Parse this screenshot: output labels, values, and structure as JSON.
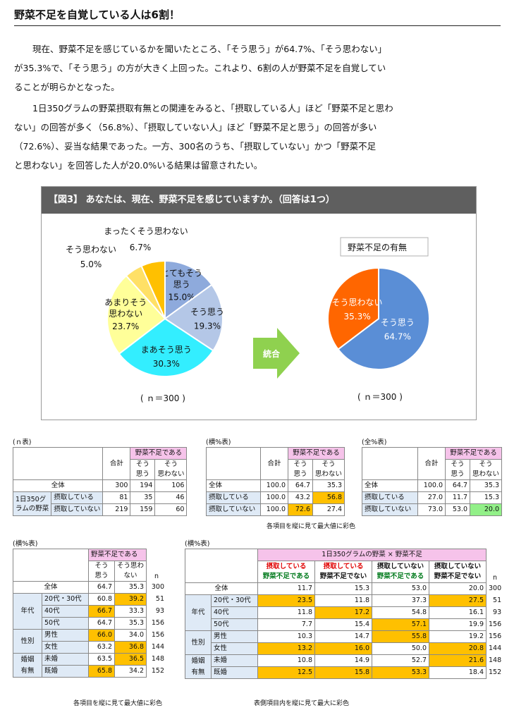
{
  "title": "野菜不足を自覚している人は6割！",
  "para1": [
    "現在、野菜不足を感じているかを聞いたところ、「そう思う」が64.7%、「そう思わない」",
    "が35.3%で、「そう思う」の方が大きく上回った。これより、6割の人が野菜不足を自覚してい",
    "ることが明らかとなった。"
  ],
  "para2": [
    "1日350グラムの野菜摂取有無との関連をみると、「摂取している人」ほど「野菜不足と思わ",
    "ない」の回答が多く（56.8%）、「摂取していない人」ほど「野菜不足と思う」の回答が多い",
    "（72.6%）、妥当な結果であった。一方、300名のうち、「摂取していない」かつ「野菜不足",
    "と思わない」を回答した人が20.0%いる結果は留意されたい。"
  ],
  "figure": {
    "title": "【図3】 あなたは、現在、野菜不足を感じていますか。（回答は1つ）",
    "merge_label": "統合",
    "left_pie": {
      "n_label": "( ｎ＝300 )",
      "slices": [
        {
          "label1": "とてもそう",
          "label2": "思う",
          "value_label": "15.0%",
          "value": 15.0,
          "color": "#8eaadc"
        },
        {
          "label1": "そう思う",
          "label2": "",
          "value_label": "19.3%",
          "value": 19.3,
          "color": "#b4c7e7"
        },
        {
          "label1": "まあそう思う",
          "label2": "",
          "value_label": "30.3%",
          "value": 30.3,
          "color": "#33eeff"
        },
        {
          "label1": "あまりそう",
          "label2": "思わない",
          "value_label": "23.7%",
          "value": 23.7,
          "color": "#ffff99"
        },
        {
          "label1": "そう思わない",
          "label2": "",
          "value_label": "5.0%",
          "value": 5.0,
          "color": "#ffe066"
        },
        {
          "label1": "まったくそう思わない",
          "label2": "",
          "value_label": "6.7%",
          "value": 6.7,
          "color": "#ffc000"
        }
      ]
    },
    "right_pie": {
      "legend_title": "野菜不足の有無",
      "n_label": "( ｎ＝300 )",
      "slices": [
        {
          "label": "そう思う",
          "value_label": "64.7%",
          "value": 64.7,
          "color": "#5a8ed6"
        },
        {
          "label": "そう思わない",
          "value_label": "35.3%",
          "value": 35.3,
          "color": "#ff6600"
        }
      ]
    }
  },
  "t1": {
    "caption": "(ｎ表)",
    "group": "野菜不足である",
    "col_total": "合計",
    "col_yes": [
      "そう",
      "思う"
    ],
    "col_no": [
      "そう",
      "思わない"
    ],
    "row_all": "全体",
    "row_group": [
      "1日350グ",
      "ラムの野菜"
    ],
    "row_a": "摂取している",
    "row_b": "摂取していない",
    "all": [
      "300",
      "194",
      "106"
    ],
    "a": [
      "81",
      "35",
      "46"
    ],
    "b": [
      "219",
      "159",
      "60"
    ]
  },
  "t2": {
    "caption": "(横%表)",
    "group": "野菜不足である",
    "col_total": "合計",
    "col_yes": [
      "そう",
      "思う"
    ],
    "col_no": [
      "そう",
      "思わない"
    ],
    "row_all": "全体",
    "row_a": "摂取している",
    "row_b": "摂取していない",
    "all": [
      "100.0",
      "64.7",
      "35.3"
    ],
    "a": [
      "100.0",
      "43.2",
      "56.8"
    ],
    "b": [
      "100.0",
      "72.6",
      "27.4"
    ],
    "note": "各項目を縦に見て最大値に彩色"
  },
  "t3": {
    "caption": "(全%表)",
    "group": "野菜不足である",
    "col_total": "合計",
    "col_yes": [
      "そう",
      "思う"
    ],
    "col_no": [
      "そう",
      "思わない"
    ],
    "row_all": "全体",
    "row_a": "摂取している",
    "row_b": "摂取していない",
    "all": [
      "100.0",
      "64.7",
      "35.3"
    ],
    "a": [
      "27.0",
      "11.7",
      "15.3"
    ],
    "b": [
      "73.0",
      "53.0",
      "20.0"
    ]
  },
  "t4": {
    "caption": "(横%表)",
    "group": "野菜不足である",
    "col_yes": [
      "そう",
      "思う"
    ],
    "col_no": [
      "そう思わ",
      "ない"
    ],
    "col_n": "n",
    "g_age": "年代",
    "g_sex": "性別",
    "g_mar": [
      "婚姻",
      "有無"
    ],
    "rows": [
      {
        "label": "全体",
        "yes": "64.7",
        "no": "35.3",
        "n": "300"
      },
      {
        "label": "20代・30代",
        "yes": "60.8",
        "no": "39.2",
        "n": "51"
      },
      {
        "label": "40代",
        "yes": "66.7",
        "no": "33.3",
        "n": "93"
      },
      {
        "label": "50代",
        "yes": "64.7",
        "no": "35.3",
        "n": "156"
      },
      {
        "label": "男性",
        "yes": "66.0",
        "no": "34.0",
        "n": "156"
      },
      {
        "label": "女性",
        "yes": "63.2",
        "no": "36.8",
        "n": "144"
      },
      {
        "label": "未婚",
        "yes": "63.5",
        "no": "36.5",
        "n": "148"
      },
      {
        "label": "既婚",
        "yes": "65.8",
        "no": "34.2",
        "n": "152"
      }
    ],
    "note": "各項目を縦に見て最大値に彩色"
  },
  "t5": {
    "caption": "(横%表)",
    "group": "1日350グラムの野菜 × 野菜不足",
    "c1": [
      "摂取している",
      "野菜不足である"
    ],
    "c2": [
      "摂取している",
      "野菜不足でない"
    ],
    "c3": [
      "摂取していない",
      "野菜不足である"
    ],
    "c4": [
      "摂取していない",
      "野菜不足でない"
    ],
    "col_n": "n",
    "g_age": "年代",
    "g_sex": "性別",
    "g_mar": [
      "婚姻",
      "有無"
    ],
    "rows": [
      {
        "label": "全体",
        "v": [
          "11.7",
          "15.3",
          "53.0",
          "20.0"
        ],
        "n": "300"
      },
      {
        "label": "20代・30代",
        "v": [
          "23.5",
          "11.8",
          "37.3",
          "27.5"
        ],
        "n": "51"
      },
      {
        "label": "40代",
        "v": [
          "11.8",
          "17.2",
          "54.8",
          "16.1"
        ],
        "n": "93"
      },
      {
        "label": "50代",
        "v": [
          "7.7",
          "15.4",
          "57.1",
          "19.9"
        ],
        "n": "156"
      },
      {
        "label": "男性",
        "v": [
          "10.3",
          "14.7",
          "55.8",
          "19.2"
        ],
        "n": "156"
      },
      {
        "label": "女性",
        "v": [
          "13.2",
          "16.0",
          "50.0",
          "20.8"
        ],
        "n": "144"
      },
      {
        "label": "未婚",
        "v": [
          "10.8",
          "14.9",
          "52.7",
          "21.6"
        ],
        "n": "148"
      },
      {
        "label": "既婚",
        "v": [
          "12.5",
          "15.8",
          "53.3",
          "18.4"
        ],
        "n": "152"
      }
    ],
    "note": "表側項目内を縦に見て最大に彩色"
  }
}
